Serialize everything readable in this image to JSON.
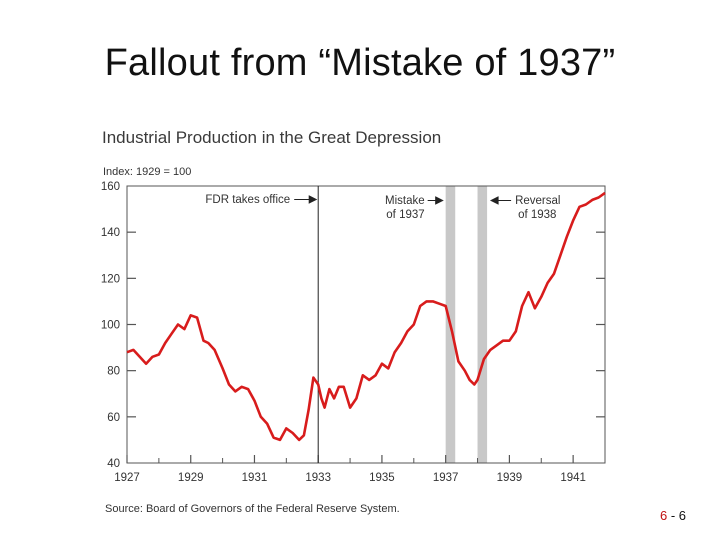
{
  "slide": {
    "title": "Fallout from “Mistake of 1937”",
    "number_prefix": "6",
    "number_sep": " - ",
    "number_suffix": "6"
  },
  "chart_data": {
    "type": "line",
    "title": "Industrial Production in the Great Depression",
    "ylabel": "Index: 1929 = 100",
    "xlim": [
      1927,
      1942.0
    ],
    "ylim": [
      40,
      160
    ],
    "x_ticks": [
      "1927",
      "1929",
      "1931",
      "1933",
      "1935",
      "1937",
      "1939",
      "1941"
    ],
    "x_minor_ticks": [
      1928,
      1930,
      1932,
      1934,
      1936,
      1938,
      1940
    ],
    "y_ticks": [
      "160",
      "140",
      "120",
      "100",
      "80",
      "60",
      "40"
    ],
    "source": "Source: Board of Governors of the Federal Reserve System.",
    "series_color": "#d81c1c",
    "series": [
      {
        "x": [
          1927.0,
          1927.2,
          1927.4,
          1927.6,
          1927.8,
          1928.0,
          1928.2,
          1928.4,
          1928.6,
          1928.8,
          1929.0,
          1929.2,
          1929.4,
          1929.55,
          1929.75,
          1930.0,
          1930.2,
          1930.4,
          1930.6,
          1930.8,
          1931.0,
          1931.2,
          1931.4,
          1931.6,
          1931.8,
          1932.0,
          1932.2,
          1932.4,
          1932.55,
          1932.7,
          1932.85,
          1933.0,
          1933.1,
          1933.2,
          1933.35,
          1933.5,
          1933.65,
          1933.8,
          1934.0,
          1934.2,
          1934.4,
          1934.6,
          1934.8,
          1935.0,
          1935.2,
          1935.4,
          1935.6,
          1935.8,
          1936.0,
          1936.2,
          1936.4,
          1936.6,
          1936.8,
          1937.0,
          1937.2,
          1937.4,
          1937.6,
          1937.75,
          1937.9,
          1938.0,
          1938.2,
          1938.4,
          1938.6,
          1938.8,
          1939.0,
          1939.2,
          1939.4,
          1939.6,
          1939.8,
          1940.0,
          1940.2,
          1940.4,
          1940.6,
          1940.8,
          1941.0,
          1941.2,
          1941.4,
          1941.6,
          1941.8,
          1942.0
        ],
        "y": [
          88,
          89,
          86,
          83,
          86,
          87,
          92,
          96,
          100,
          98,
          104,
          103,
          93,
          92,
          89,
          81,
          74,
          71,
          73,
          72,
          67,
          60,
          57,
          51,
          50,
          55,
          53,
          50,
          52,
          63,
          77,
          74,
          68,
          64,
          72,
          68,
          73,
          73,
          64,
          68,
          78,
          76,
          78,
          83,
          81,
          88,
          92,
          97,
          100,
          108,
          110,
          110,
          109,
          108,
          97,
          84,
          80,
          76,
          74,
          76,
          85,
          89,
          91,
          93,
          93,
          97,
          108,
          114,
          107,
          112,
          118,
          122,
          130,
          138,
          145,
          151,
          152,
          154,
          155,
          157
        ]
      }
    ],
    "shaded_regions": [
      [
        1937.0,
        1937.3
      ],
      [
        1938.0,
        1938.3
      ]
    ],
    "annotations": {
      "fdr": "FDR takes office",
      "mistake_line1": "Mistake",
      "mistake_line2": "of 1937",
      "reversal_line1": "Reversal",
      "reversal_line2": "of 1938"
    },
    "fdr_x": 1933.0
  }
}
